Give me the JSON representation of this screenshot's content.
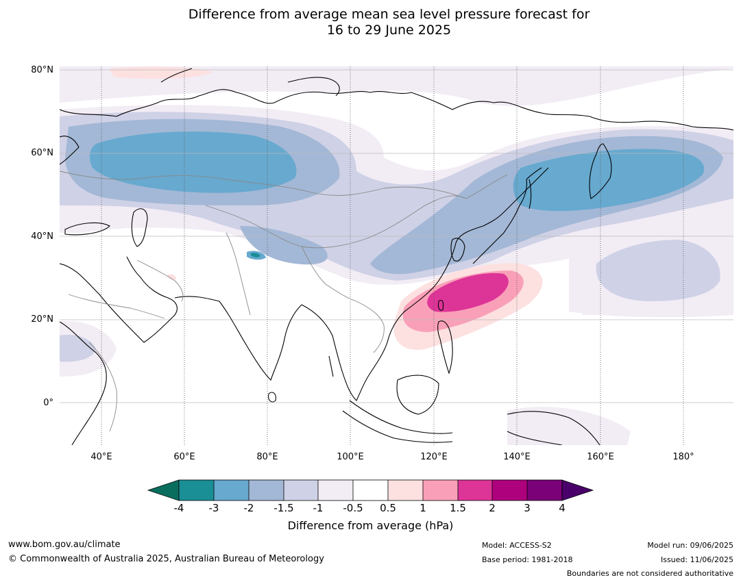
{
  "title": {
    "line1": "Difference from average mean sea level pressure forecast for",
    "line2": "16 to 29 June 2025"
  },
  "map": {
    "lat_labels": [
      "80°N",
      "60°N",
      "40°N",
      "20°N",
      "0°"
    ],
    "lon_labels": [
      "40°E",
      "60°E",
      "80°E",
      "100°E",
      "120°E",
      "140°E",
      "160°E",
      "180°"
    ],
    "colors": {
      "land_outline": "#000000",
      "borders": "#888888",
      "grid": "#bbbbbb"
    }
  },
  "colorbar": {
    "title": "Difference from average (hPa)",
    "tick_labels": [
      "-4",
      "-3",
      "-2",
      "-1.5",
      "-1",
      "-0.5",
      "0.5",
      "1",
      "1.5",
      "2",
      "3",
      "4"
    ],
    "colors": [
      "#0a6e5e",
      "#1a8f96",
      "#67a9cf",
      "#a3b8d6",
      "#cfd1e6",
      "#f2ecf5",
      "#ffffff",
      "#fde0e0",
      "#f9a0b8",
      "#dd3497",
      "#ae017e",
      "#7a0177",
      "#49006a"
    ]
  },
  "footer": {
    "url": "www.bom.gov.au/climate",
    "copyright": "© Commonwealth of Australia 2025, Australian Bureau of Meteorology",
    "model": "Model: ACCESS-S2",
    "base_period": "Base period: 1981-2018",
    "model_run": "Model run: 09/06/2025",
    "issued": "Issued: 11/06/2025",
    "disclaimer": "Boundaries are not considered authoritative"
  }
}
